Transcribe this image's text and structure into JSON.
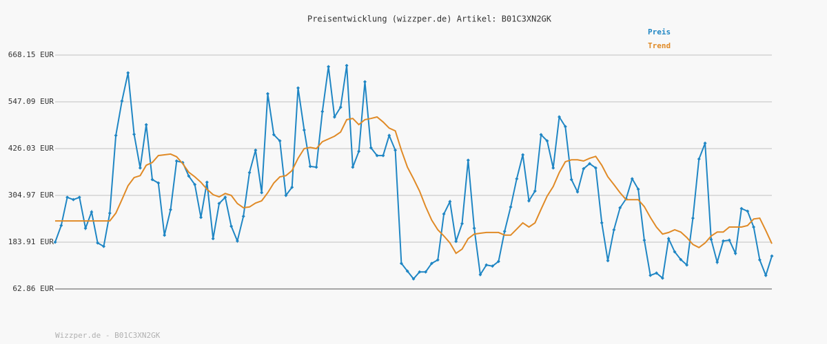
{
  "chart_data": {
    "type": "line",
    "title": "Preisentwicklung (wizzper.de) Artikel: B01C3XN2GK",
    "footer": "Wizzper.de - B01C3XN2GK",
    "ylim": [
      62.86,
      668.15
    ],
    "yticks": [
      {
        "value": 62.86,
        "label": "62.86 EUR"
      },
      {
        "value": 183.91,
        "label": "183.91 EUR"
      },
      {
        "value": 304.97,
        "label": "304.97 EUR"
      },
      {
        "value": 426.03,
        "label": "426.03 EUR"
      },
      {
        "value": 547.09,
        "label": "547.09 EUR"
      },
      {
        "value": 668.15,
        "label": "668.15 EUR"
      }
    ],
    "grid": true,
    "legend": "top-right",
    "series": [
      {
        "name": "Preis",
        "color": "#1f86c4",
        "markers": true,
        "values": [
          184,
          227,
          300,
          294,
          300,
          220,
          262,
          182,
          173,
          259,
          460,
          549,
          622,
          463,
          376,
          488,
          346,
          337,
          202,
          268,
          394,
          390,
          355,
          333,
          248,
          339,
          193,
          284,
          300,
          225,
          187,
          251,
          364,
          422,
          312,
          568,
          462,
          446,
          305,
          326,
          583,
          474,
          380,
          378,
          522,
          638,
          508,
          533,
          641,
          378,
          419,
          599,
          428,
          408,
          408,
          460,
          422,
          129,
          109,
          89,
          107,
          107,
          129,
          138,
          257,
          289,
          186,
          232,
          396,
          220,
          100,
          125,
          122,
          134,
          212,
          275,
          348,
          410,
          291,
          316,
          462,
          446,
          376,
          508,
          483,
          346,
          314,
          374,
          387,
          376,
          234,
          136,
          216,
          273,
          296,
          348,
          321,
          189,
          98,
          104,
          91,
          193,
          159,
          139,
          125,
          246,
          399,
          440,
          191,
          132,
          187,
          189,
          155,
          271,
          264,
          223,
          138,
          98,
          148
        ]
      },
      {
        "name": "Trend",
        "color": "#e08a26",
        "markers": false,
        "values": [
          239,
          239,
          239,
          239,
          239,
          239,
          239,
          239,
          239,
          239,
          259,
          294,
          330,
          351,
          356,
          383,
          390,
          408,
          410,
          412,
          405,
          387,
          365,
          353,
          339,
          321,
          307,
          301,
          310,
          305,
          284,
          273,
          275,
          285,
          291,
          312,
          337,
          353,
          356,
          369,
          401,
          426,
          429,
          426,
          444,
          451,
          458,
          469,
          501,
          504,
          488,
          501,
          504,
          508,
          495,
          479,
          472,
          422,
          378,
          348,
          316,
          276,
          241,
          216,
          200,
          182,
          155,
          166,
          193,
          205,
          207,
          209,
          209,
          209,
          202,
          202,
          218,
          234,
          223,
          234,
          269,
          303,
          328,
          364,
          392,
          397,
          397,
          394,
          401,
          406,
          383,
          353,
          333,
          312,
          294,
          294,
          294,
          276,
          248,
          223,
          205,
          209,
          216,
          210,
          196,
          178,
          170,
          182,
          200,
          210,
          210,
          223,
          223,
          223,
          227,
          244,
          246,
          214,
          180
        ]
      }
    ]
  }
}
